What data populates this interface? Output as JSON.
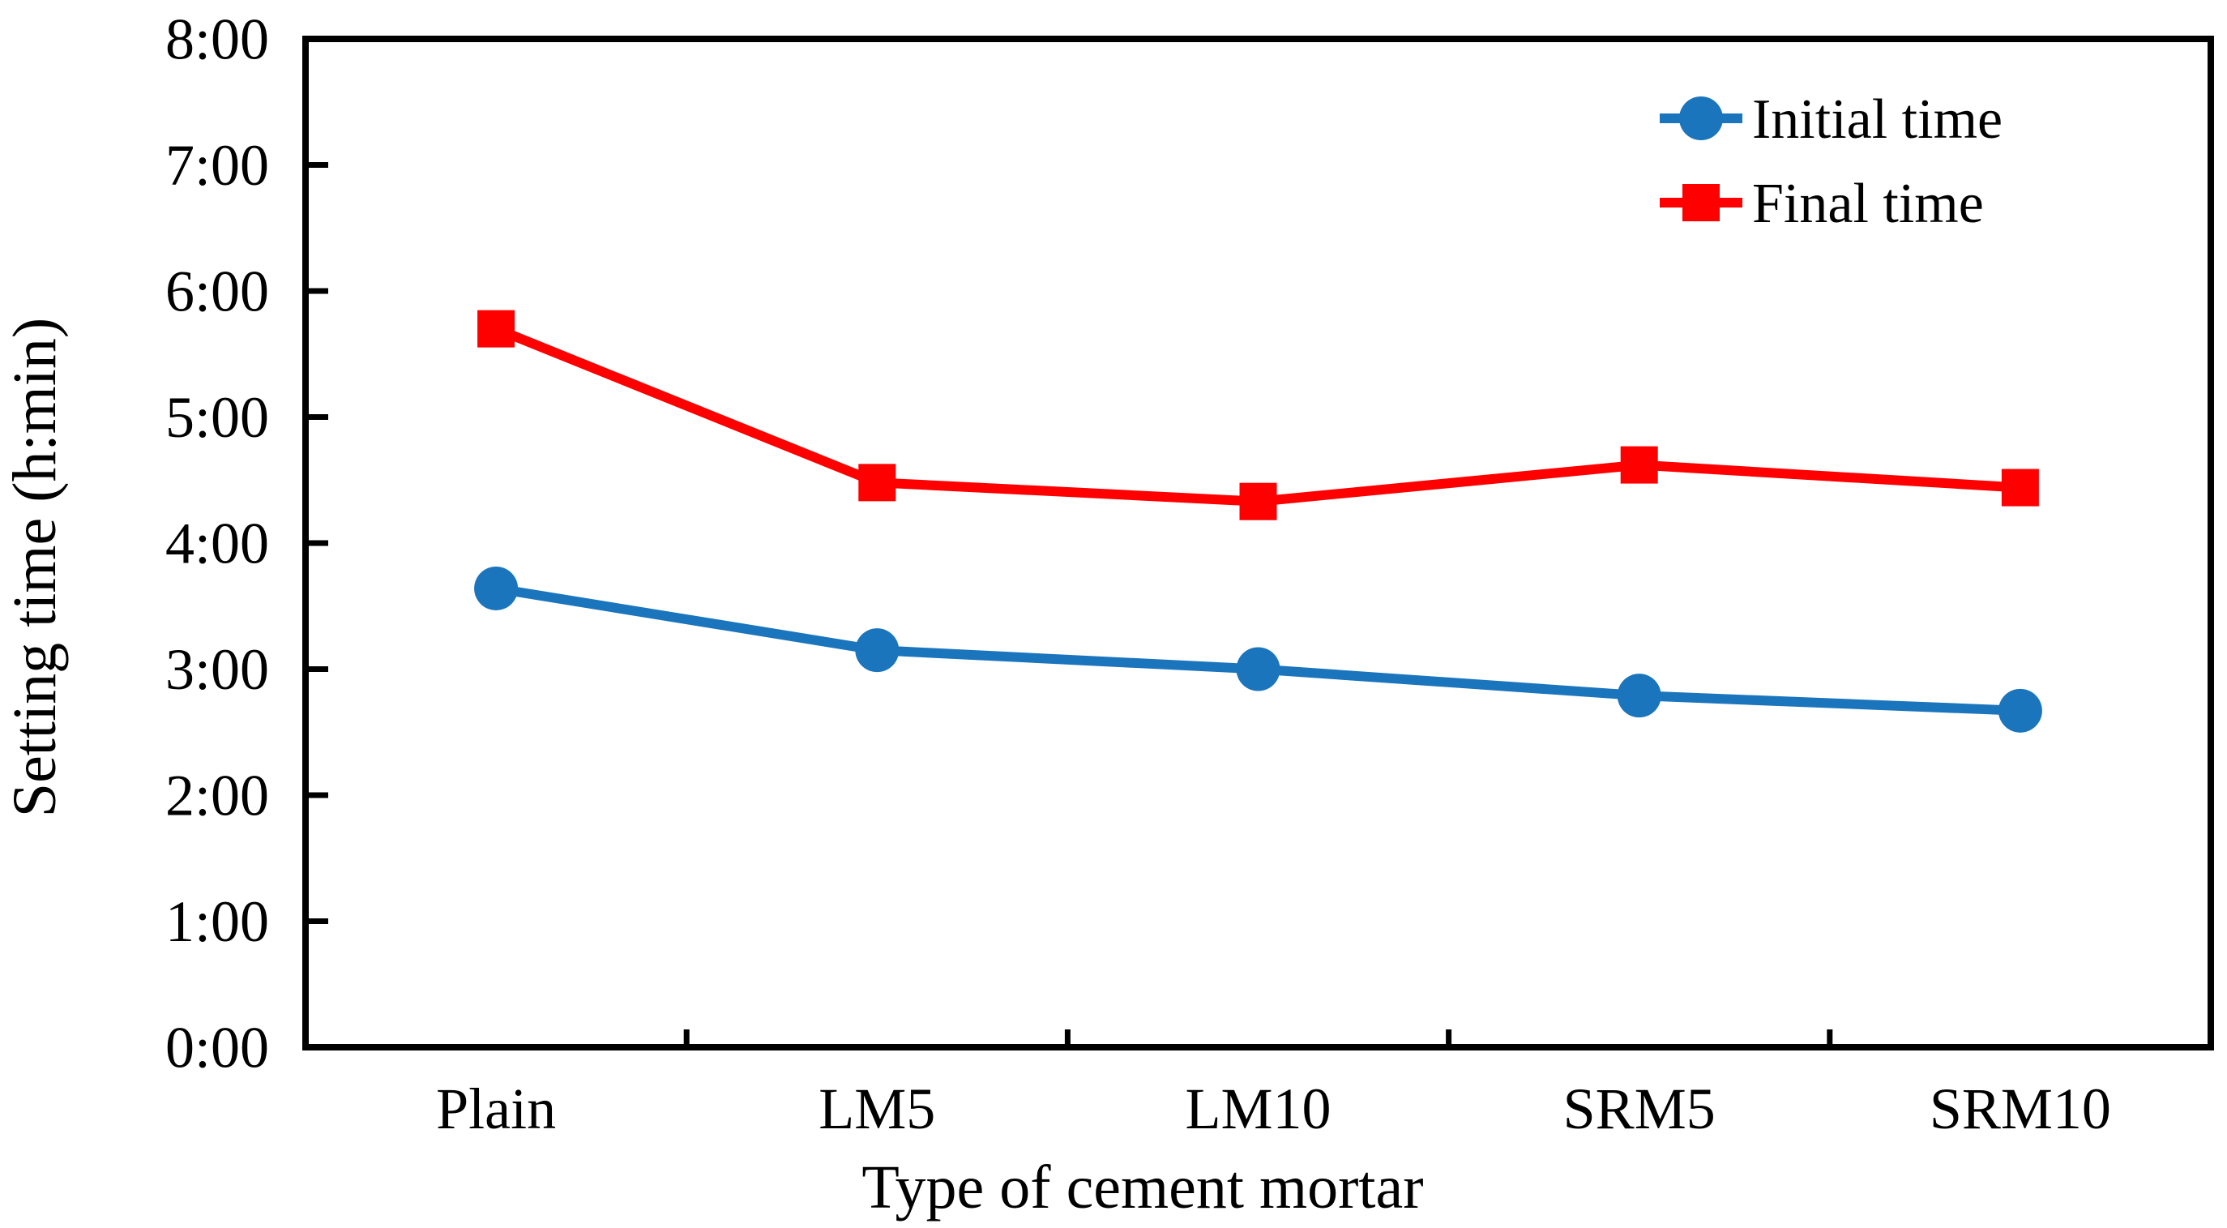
{
  "figure": {
    "background": "#ffffff",
    "y_axis_title": "Setting time (h:min)",
    "x_axis_title": "Type of cement mortar"
  },
  "legend": {
    "items": [
      {
        "label": "Initial time",
        "marker": "circle",
        "color": "#1B75BC"
      },
      {
        "label": "Final time",
        "marker": "square",
        "color": "#FF0000"
      }
    ]
  },
  "chart_data": {
    "type": "line",
    "title": "",
    "xlabel": "Type of cement mortar",
    "ylabel": "Setting time (h:min)",
    "categories": [
      "Plain",
      "LM5",
      "LM10",
      "SRM5",
      "SRM10"
    ],
    "y_tick_labels": [
      "0:00",
      "1:00",
      "2:00",
      "3:00",
      "4:00",
      "5:00",
      "6:00",
      "7:00",
      "8:00"
    ],
    "ylim_hours": [
      0,
      8
    ],
    "y_tick_step_hours": 1,
    "grid": false,
    "legend_position": "top-right-inside",
    "series": [
      {
        "name": "Initial time",
        "marker": "circle",
        "color": "#1B75BC",
        "values_hmin": [
          "3:38",
          "3:09",
          "3:00",
          "2:48",
          "2:40"
        ],
        "values_hours": [
          3.64,
          3.15,
          3.0,
          2.79,
          2.67
        ]
      },
      {
        "name": "Final time",
        "marker": "square",
        "color": "#FF0000",
        "values_hmin": [
          "5:42",
          "4:29",
          "4:20",
          "4:37",
          "4:27"
        ],
        "values_hours": [
          5.7,
          4.48,
          4.33,
          4.62,
          4.44
        ]
      }
    ]
  }
}
